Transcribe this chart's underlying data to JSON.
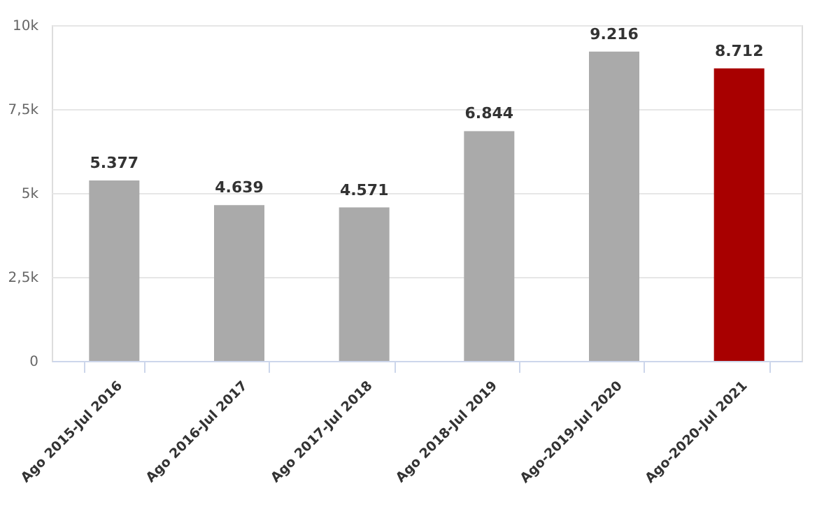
{
  "chart_data": {
    "type": "bar",
    "categories": [
      "Ago 2015-Jul 2016",
      "Ago 2016-Jul 2017",
      "Ago 2017-Jul 2018",
      "Ago 2018-Jul 2019",
      "Ago-2019-Jul 2020",
      "Ago-2020-Jul 2021"
    ],
    "values": [
      5377,
      4639,
      4571,
      6844,
      9216,
      8712
    ],
    "colors": [
      "#aaaaaa",
      "#aaaaaa",
      "#aaaaaa",
      "#aaaaaa",
      "#aaaaaa",
      "#a80000"
    ],
    "value_labels": [
      "5.377",
      "4.639",
      "4.571",
      "6.844",
      "9.216",
      "8.712"
    ],
    "ylim": [
      0,
      10000
    ],
    "yticks": [
      {
        "value": 0,
        "label": "0"
      },
      {
        "value": 2500,
        "label": "2,5k"
      },
      {
        "value": 5000,
        "label": "5k"
      },
      {
        "value": 7500,
        "label": "7,5k"
      },
      {
        "value": 10000,
        "label": "10k"
      }
    ],
    "grid": "y"
  }
}
